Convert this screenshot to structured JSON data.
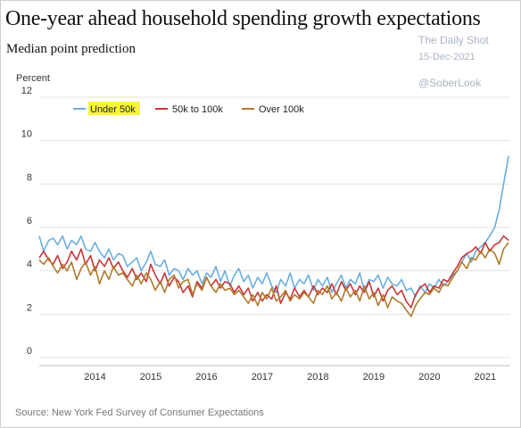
{
  "header": {
    "title": "One-year ahead household spending growth expectations",
    "subtitle": "Median point prediction"
  },
  "watermark": {
    "name": "The Daily Shot",
    "date": "15-Dec-2021",
    "handle": "@SoberLook"
  },
  "footer": {
    "source": "Source: New York Fed Survey of Consumer Expectations"
  },
  "legend_highlight_color": "#f7f53a",
  "chart_data": {
    "type": "line",
    "ylabel": "Percent",
    "ylim": [
      0,
      12
    ],
    "yticks": [
      "0",
      "2",
      "4",
      "6",
      "8",
      "10",
      "12"
    ],
    "xlim": [
      2013.5,
      2021.95
    ],
    "xticks": [
      "2014",
      "2015",
      "2016",
      "2017",
      "2018",
      "2019",
      "2020",
      "2021"
    ],
    "grid": "horizontal",
    "legend_position": "top-left",
    "series": [
      {
        "name": "Under 50k",
        "color": "#6aaee0",
        "highlight": true,
        "x": [
          2013.5,
          2013.58,
          2013.67,
          2013.75,
          2013.83,
          2013.92,
          2014.0,
          2014.08,
          2014.17,
          2014.25,
          2014.33,
          2014.42,
          2014.5,
          2014.58,
          2014.67,
          2014.75,
          2014.83,
          2014.92,
          2015.0,
          2015.08,
          2015.17,
          2015.25,
          2015.33,
          2015.42,
          2015.5,
          2015.58,
          2015.67,
          2015.75,
          2015.83,
          2015.92,
          2016.0,
          2016.08,
          2016.17,
          2016.25,
          2016.33,
          2016.42,
          2016.5,
          2016.58,
          2016.67,
          2016.75,
          2016.83,
          2016.92,
          2017.0,
          2017.08,
          2017.17,
          2017.25,
          2017.33,
          2017.42,
          2017.5,
          2017.58,
          2017.67,
          2017.75,
          2017.83,
          2017.92,
          2018.0,
          2018.08,
          2018.17,
          2018.25,
          2018.33,
          2018.42,
          2018.5,
          2018.58,
          2018.67,
          2018.75,
          2018.83,
          2018.92,
          2019.0,
          2019.08,
          2019.17,
          2019.25,
          2019.33,
          2019.42,
          2019.5,
          2019.58,
          2019.67,
          2019.75,
          2019.83,
          2019.92,
          2020.0,
          2020.08,
          2020.17,
          2020.25,
          2020.33,
          2020.42,
          2020.5,
          2020.58,
          2020.67,
          2020.75,
          2020.83,
          2020.92,
          2021.0,
          2021.08,
          2021.17,
          2021.25,
          2021.33,
          2021.42,
          2021.5,
          2021.58,
          2021.67,
          2021.75,
          2021.83,
          2021.92
        ],
        "y": [
          5.6,
          4.9,
          5.4,
          5.5,
          5.2,
          5.6,
          5.0,
          5.4,
          5.2,
          5.6,
          5.0,
          4.9,
          5.3,
          4.9,
          4.6,
          5.0,
          4.5,
          4.8,
          4.7,
          4.2,
          4.4,
          4.6,
          4.0,
          4.4,
          4.9,
          4.3,
          4.2,
          4.5,
          3.8,
          4.1,
          4.0,
          3.6,
          4.1,
          3.8,
          4.0,
          3.4,
          3.9,
          3.7,
          4.2,
          3.5,
          4.0,
          3.3,
          3.8,
          4.1,
          3.5,
          3.8,
          3.2,
          3.7,
          3.4,
          3.9,
          3.3,
          3.0,
          3.6,
          3.3,
          3.9,
          3.2,
          3.6,
          3.4,
          3.8,
          3.1,
          3.6,
          3.3,
          3.7,
          3.0,
          3.4,
          3.8,
          3.2,
          3.6,
          3.4,
          3.9,
          3.1,
          3.6,
          3.5,
          3.8,
          3.2,
          3.7,
          3.4,
          3.3,
          3.6,
          3.1,
          3.2,
          2.8,
          3.3,
          3.0,
          3.4,
          3.2,
          3.6,
          3.3,
          3.5,
          3.8,
          4.0,
          4.4,
          4.8,
          4.4,
          4.9,
          5.1,
          5.3,
          5.6,
          6.0,
          6.8,
          8.0,
          9.3
        ]
      },
      {
        "name": "50k to 100k",
        "color": "#c8353a",
        "x": [
          2013.5,
          2013.58,
          2013.67,
          2013.75,
          2013.83,
          2013.92,
          2014.0,
          2014.08,
          2014.17,
          2014.25,
          2014.33,
          2014.42,
          2014.5,
          2014.58,
          2014.67,
          2014.75,
          2014.83,
          2014.92,
          2015.0,
          2015.08,
          2015.17,
          2015.25,
          2015.33,
          2015.42,
          2015.5,
          2015.58,
          2015.67,
          2015.75,
          2015.83,
          2015.92,
          2016.0,
          2016.08,
          2016.17,
          2016.25,
          2016.33,
          2016.42,
          2016.5,
          2016.58,
          2016.67,
          2016.75,
          2016.83,
          2016.92,
          2017.0,
          2017.08,
          2017.17,
          2017.25,
          2017.33,
          2017.42,
          2017.5,
          2017.58,
          2017.67,
          2017.75,
          2017.83,
          2017.92,
          2018.0,
          2018.08,
          2018.17,
          2018.25,
          2018.33,
          2018.42,
          2018.5,
          2018.58,
          2018.67,
          2018.75,
          2018.83,
          2018.92,
          2019.0,
          2019.08,
          2019.17,
          2019.25,
          2019.33,
          2019.42,
          2019.5,
          2019.58,
          2019.67,
          2019.75,
          2019.83,
          2019.92,
          2020.0,
          2020.08,
          2020.17,
          2020.25,
          2020.33,
          2020.42,
          2020.5,
          2020.58,
          2020.67,
          2020.75,
          2020.83,
          2020.92,
          2021.0,
          2021.08,
          2021.17,
          2021.25,
          2021.33,
          2021.42,
          2021.5,
          2021.58,
          2021.67,
          2021.75,
          2021.83,
          2021.92
        ],
        "y": [
          4.6,
          4.9,
          4.5,
          4.3,
          4.7,
          4.1,
          4.4,
          4.9,
          4.5,
          5.0,
          4.3,
          4.7,
          4.0,
          4.5,
          4.2,
          4.6,
          4.1,
          4.4,
          4.0,
          3.7,
          4.1,
          3.6,
          3.9,
          3.5,
          4.3,
          3.8,
          3.4,
          3.9,
          3.3,
          3.7,
          3.5,
          3.0,
          3.3,
          2.8,
          3.5,
          3.2,
          3.7,
          3.3,
          3.6,
          3.2,
          3.5,
          3.4,
          3.0,
          3.3,
          2.9,
          3.2,
          2.6,
          3.0,
          2.6,
          2.9,
          2.7,
          3.3,
          2.5,
          3.0,
          2.7,
          3.2,
          2.8,
          3.1,
          2.8,
          3.3,
          2.9,
          3.2,
          3.0,
          3.4,
          2.9,
          3.5,
          3.1,
          3.4,
          2.9,
          3.3,
          3.0,
          3.5,
          2.8,
          3.2,
          2.6,
          3.1,
          3.3,
          2.9,
          3.1,
          2.6,
          2.3,
          2.9,
          3.2,
          3.4,
          3.0,
          3.3,
          3.2,
          3.6,
          3.5,
          3.9,
          4.2,
          4.6,
          4.8,
          4.9,
          5.1,
          4.8,
          5.3,
          4.9,
          5.2,
          5.3,
          5.6,
          5.4
        ]
      },
      {
        "name": "Over 100k",
        "color": "#b07b2b",
        "x": [
          2013.5,
          2013.58,
          2013.67,
          2013.75,
          2013.83,
          2013.92,
          2014.0,
          2014.08,
          2014.17,
          2014.25,
          2014.33,
          2014.42,
          2014.5,
          2014.58,
          2014.67,
          2014.75,
          2014.83,
          2014.92,
          2015.0,
          2015.08,
          2015.17,
          2015.25,
          2015.33,
          2015.42,
          2015.5,
          2015.58,
          2015.67,
          2015.75,
          2015.83,
          2015.92,
          2016.0,
          2016.08,
          2016.17,
          2016.25,
          2016.33,
          2016.42,
          2016.5,
          2016.58,
          2016.67,
          2016.75,
          2016.83,
          2016.92,
          2017.0,
          2017.08,
          2017.17,
          2017.25,
          2017.33,
          2017.42,
          2017.5,
          2017.58,
          2017.67,
          2017.75,
          2017.83,
          2017.92,
          2018.0,
          2018.08,
          2018.17,
          2018.25,
          2018.33,
          2018.42,
          2018.5,
          2018.58,
          2018.67,
          2018.75,
          2018.83,
          2018.92,
          2019.0,
          2019.08,
          2019.17,
          2019.25,
          2019.33,
          2019.42,
          2019.5,
          2019.58,
          2019.67,
          2019.75,
          2019.83,
          2019.92,
          2020.0,
          2020.08,
          2020.17,
          2020.25,
          2020.33,
          2020.42,
          2020.5,
          2020.58,
          2020.67,
          2020.75,
          2020.83,
          2020.92,
          2021.0,
          2021.08,
          2021.17,
          2021.25,
          2021.33,
          2021.42,
          2021.5,
          2021.58,
          2021.67,
          2021.75,
          2021.83,
          2021.92
        ],
        "y": [
          4.5,
          4.3,
          4.6,
          4.2,
          3.9,
          4.3,
          4.0,
          4.4,
          3.6,
          4.1,
          4.4,
          3.8,
          4.2,
          3.4,
          4.0,
          3.6,
          4.2,
          3.8,
          3.9,
          3.6,
          3.3,
          3.8,
          3.4,
          3.9,
          3.6,
          3.1,
          3.5,
          3.0,
          3.6,
          3.8,
          3.2,
          3.5,
          3.6,
          2.9,
          3.4,
          3.1,
          3.7,
          3.3,
          3.0,
          3.4,
          3.1,
          3.2,
          2.9,
          3.1,
          2.8,
          2.5,
          2.9,
          2.4,
          3.0,
          2.7,
          3.2,
          2.6,
          2.8,
          3.1,
          2.6,
          2.9,
          2.7,
          3.0,
          2.8,
          2.5,
          3.1,
          2.9,
          3.3,
          2.7,
          3.0,
          2.6,
          3.2,
          2.8,
          3.1,
          2.6,
          3.3,
          2.7,
          3.0,
          2.4,
          2.9,
          2.3,
          2.8,
          2.6,
          2.5,
          2.2,
          1.9,
          2.4,
          2.7,
          3.0,
          2.9,
          3.2,
          3.0,
          3.4,
          3.3,
          3.7,
          4.0,
          4.4,
          4.1,
          4.6,
          4.5,
          4.9,
          4.6,
          5.0,
          4.8,
          4.3,
          5.0,
          5.3
        ]
      }
    ]
  }
}
